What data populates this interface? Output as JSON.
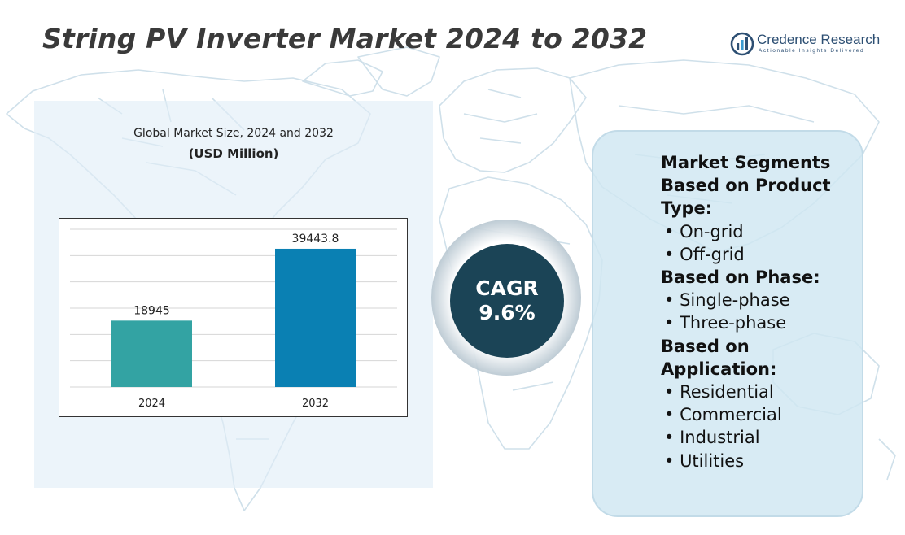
{
  "title": "String PV Inverter Market 2024 to 2032",
  "brand": {
    "name": "Credence Research",
    "tagline": "Actionable Insights Delivered"
  },
  "chart_caption": {
    "line1": "Global Market Size, 2024 and 2032",
    "line2": "(USD Million)"
  },
  "chart_data": {
    "type": "bar",
    "title": "Global Market Size, 2024 and 2032",
    "ylabel": "(USD Million)",
    "categories": [
      "2024",
      "2032"
    ],
    "values": [
      18945,
      39443.8
    ],
    "value_labels": [
      "18945",
      "39443.8"
    ],
    "colors": [
      "#33a3a3",
      "#0a80b3"
    ],
    "ylim": [
      0,
      45000
    ],
    "grid": true
  },
  "cagr": {
    "label": "CAGR",
    "value": "9.6%"
  },
  "segments": {
    "heading": "Market Segments",
    "groups": [
      {
        "header": "Based on Product Type:",
        "items": [
          "On-grid",
          "Off-grid"
        ]
      },
      {
        "header": "Based on Phase:",
        "items": [
          "Single-phase",
          "Three-phase"
        ]
      },
      {
        "header": "Based on Application:",
        "items": [
          "Residential",
          "Commercial",
          "Industrial",
          "Utilities"
        ]
      }
    ]
  },
  "colors": {
    "title": "#3a3a3a",
    "cagr_disk": "#1b4456",
    "panel": "#e0eef7",
    "brand": "#2d4f73"
  }
}
